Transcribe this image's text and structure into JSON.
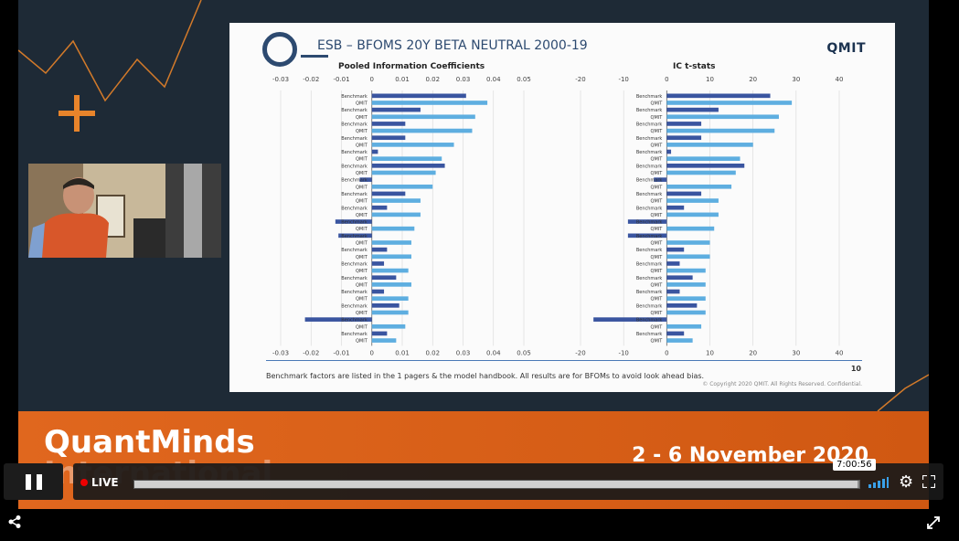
{
  "slide": {
    "title": "ESB – BFOMS 20Y BETA NEUTRAL 2000-19",
    "logo": "QMIT",
    "left_panel_title": "Pooled Information Coefficients",
    "right_panel_title": "IC t-stats",
    "footnote": "Benchmark factors are listed in the 1 pagers & the model handbook. All results are for BFOMs to avoid look ahead bias.",
    "copyright": "© Copyright 2020 QMIT. All Rights Reserved. Confidential.",
    "page_number": "10"
  },
  "chart_data": [
    {
      "type": "bar",
      "orientation": "horizontal",
      "title": "Pooled Information Coefficients",
      "categories": [
        "Benchmark",
        "QMIT",
        "Benchmark",
        "QMIT",
        "Benchmark",
        "QMIT",
        "Benchmark",
        "QMIT",
        "Benchmark",
        "QMIT",
        "Benchmark",
        "QMIT",
        "Benchmark",
        "QMIT",
        "Benchmark",
        "QMIT",
        "Benchmark",
        "QMIT",
        "Benchmark",
        "QMIT",
        "Benchmark",
        "QMIT",
        "Benchmark",
        "QMIT",
        "Benchmark",
        "QMIT",
        "Benchmark",
        "QMIT",
        "Benchmark",
        "QMIT",
        "Benchmark",
        "QMIT",
        "Benchmark",
        "QMIT",
        "Benchmark",
        "QMIT"
      ],
      "values": [
        0.031,
        0.038,
        0.016,
        0.034,
        0.011,
        0.033,
        0.011,
        0.027,
        0.002,
        0.023,
        0.024,
        0.021,
        -0.004,
        0.02,
        0.011,
        0.016,
        0.005,
        0.016,
        -0.012,
        0.014,
        -0.011,
        0.013,
        0.005,
        0.013,
        0.004,
        0.012,
        0.008,
        0.013,
        0.004,
        0.012,
        0.009,
        0.012,
        -0.022,
        0.011,
        0.005,
        0.008
      ],
      "series_colors": {
        "Benchmark": "#3a55a0",
        "QMIT": "#5eaee0"
      },
      "xlim": [
        -0.03,
        0.05
      ],
      "ticks": [
        "-0.03",
        "-0.02",
        "-0.01",
        "0",
        "0.01",
        "0.02",
        "0.03",
        "0.04",
        "0.05"
      ]
    },
    {
      "type": "bar",
      "orientation": "horizontal",
      "title": "IC t-stats",
      "categories": [
        "Benchmark",
        "QMIT",
        "Benchmark",
        "QMIT",
        "Benchmark",
        "QMIT",
        "Benchmark",
        "QMIT",
        "Benchmark",
        "QMIT",
        "Benchmark",
        "QMIT",
        "Benchmark",
        "QMIT",
        "Benchmark",
        "QMIT",
        "Benchmark",
        "QMIT",
        "Benchmark",
        "QMIT",
        "Benchmark",
        "QMIT",
        "Benchmark",
        "QMIT",
        "Benchmark",
        "QMIT",
        "Benchmark",
        "QMIT",
        "Benchmark",
        "QMIT",
        "Benchmark",
        "QMIT",
        "Benchmark",
        "QMIT",
        "Benchmark",
        "QMIT"
      ],
      "values": [
        24,
        29,
        12,
        26,
        8,
        25,
        8,
        20,
        1,
        17,
        18,
        16,
        -3,
        15,
        8,
        12,
        4,
        12,
        -9,
        11,
        -9,
        10,
        4,
        10,
        3,
        9,
        6,
        9,
        3,
        9,
        7,
        9,
        -17,
        8,
        4,
        6
      ],
      "series_colors": {
        "Benchmark": "#3a55a0",
        "QMIT": "#5eaee0"
      },
      "xlim": [
        -20,
        40
      ],
      "ticks": [
        "-20",
        "-10",
        "0",
        "10",
        "20",
        "30",
        "40"
      ]
    }
  ],
  "banner": {
    "title": "QuantMinds",
    "title_line2": "International",
    "dates": "2 - 6 November 2020"
  },
  "player": {
    "live_label": "LIVE",
    "time_tooltip": "7:00:56",
    "progress": 0.998,
    "icons": {
      "pause": "pause-icon",
      "live": "live-dot-icon",
      "signal": "signal-strength-icon",
      "settings": "gear-icon",
      "fullscreen": "fullscreen-icon",
      "share": "share-icon",
      "expand": "expand-icon"
    }
  }
}
